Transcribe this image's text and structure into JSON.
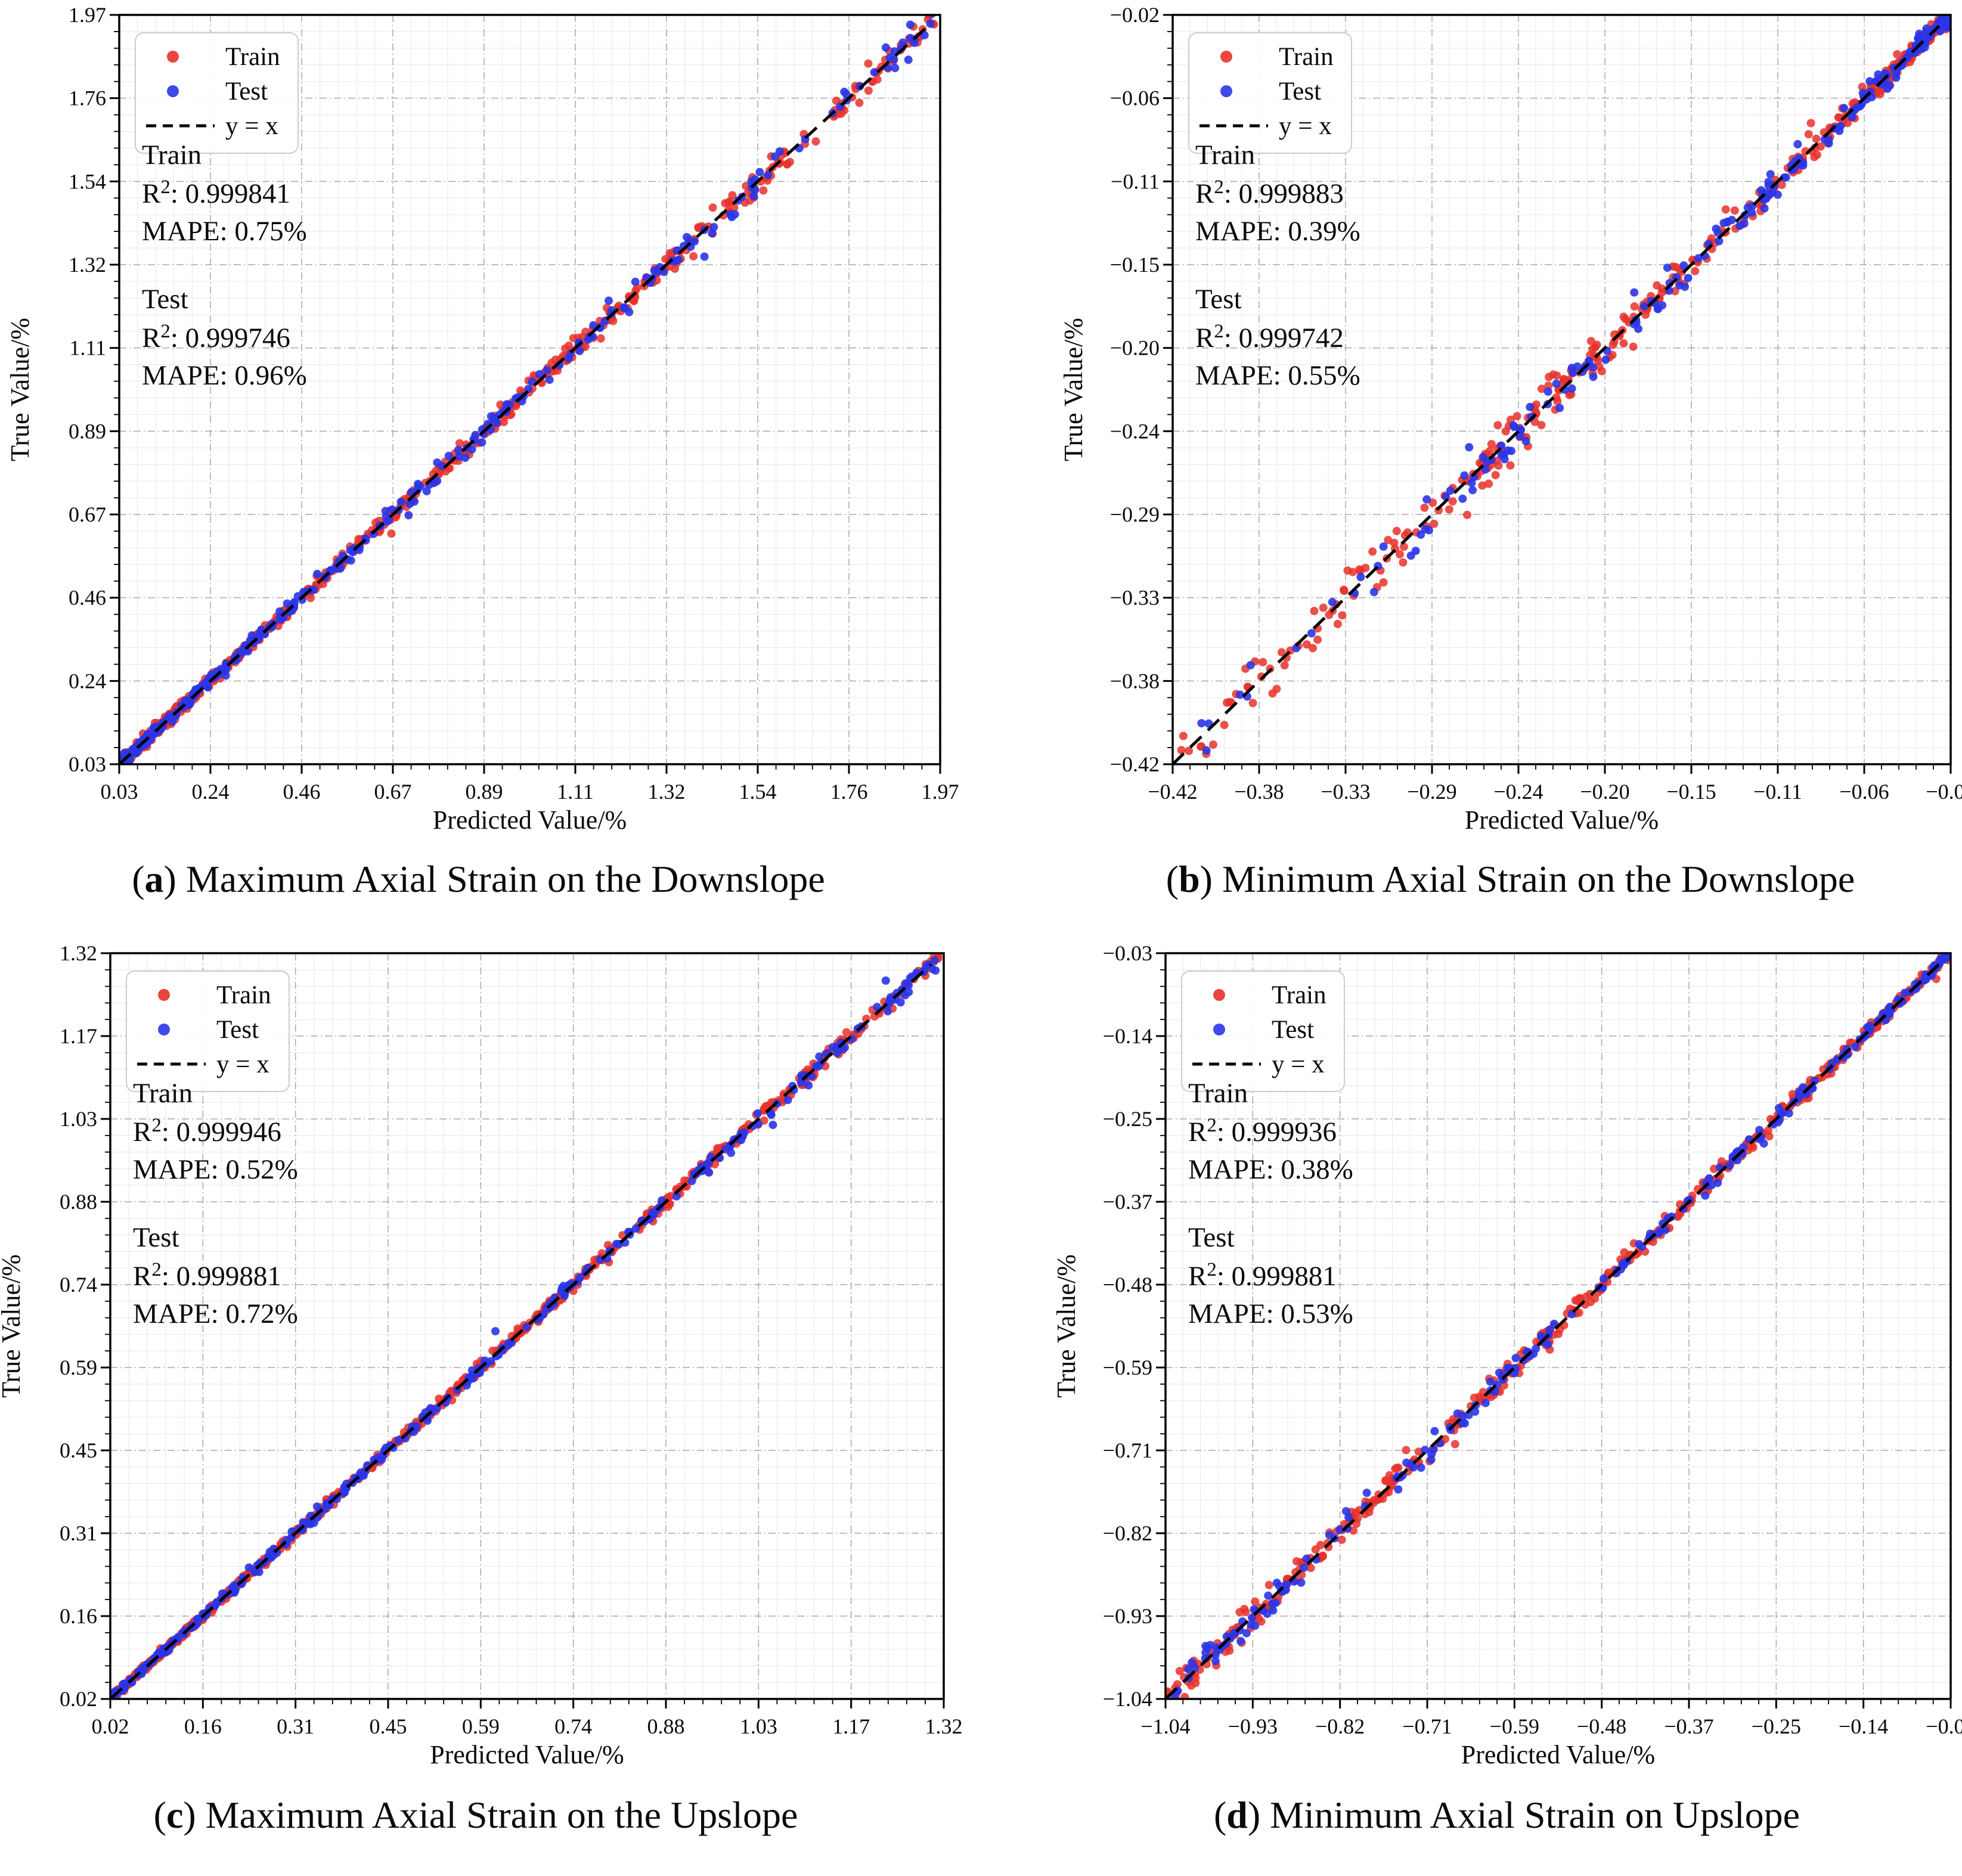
{
  "shared": {
    "legend": {
      "train_label": "Train",
      "test_label": "Test",
      "identity_label": "y = x"
    },
    "stats_labels": {
      "train": "Train",
      "test": "Test",
      "r2_base": "R",
      "r2_sup": "2",
      "colon": ": ",
      "mape": "MAPE: "
    },
    "colors": {
      "train": "#e8312a",
      "test": "#2a35e8",
      "identity": "#000000",
      "grid_major": "#9a9a9a",
      "grid_minor": "#e9e9e9",
      "spine": "#000000"
    }
  },
  "chart_data": [
    {
      "id": "a",
      "type": "scatter",
      "caption_letter": "a",
      "caption_paren_open": "(",
      "caption_paren_close": ") ",
      "caption_text": "Maximum Axial Strain on the Downslope",
      "xlabel": "Predicted Value/%",
      "ylabel": "True Value/%",
      "axis_min": 0.03,
      "axis_max": 1.97,
      "tick_labels": [
        "0.03",
        "0.24",
        "0.46",
        "0.67",
        "0.89",
        "1.11",
        "1.32",
        "1.54",
        "1.76",
        "1.97"
      ],
      "legend_entries": [
        "Train",
        "Test",
        "y = x"
      ],
      "grid": "major-dashed+minor",
      "identity_line": "y = x",
      "series": [
        {
          "name": "Train",
          "role": "train",
          "r2": "0.999841",
          "mape": "0.75%"
        },
        {
          "name": "Test",
          "role": "test",
          "r2": "0.999746",
          "mape": "0.96%"
        }
      ],
      "point_cloud": {
        "seed": 101,
        "n_train": 680,
        "n_test": 340,
        "bias": 2.2,
        "dense_end": "min",
        "noise_base": 0.006,
        "noise_prop": 0.0075
      }
    },
    {
      "id": "b",
      "type": "scatter",
      "caption_letter": "b",
      "caption_paren_open": "(",
      "caption_paren_close": ") ",
      "caption_text": "Minimum Axial Strain on the Downslope",
      "xlabel": "Predicted Value/%",
      "ylabel": "True Value/%",
      "axis_min": -0.42,
      "axis_max": -0.02,
      "tick_labels": [
        "−0.42",
        "−0.38",
        "−0.33",
        "−0.29",
        "−0.24",
        "−0.20",
        "−0.15",
        "−0.11",
        "−0.06",
        "−0.02"
      ],
      "legend_entries": [
        "Train",
        "Test",
        "y = x"
      ],
      "grid": "major-dashed+minor",
      "identity_line": "y = x",
      "series": [
        {
          "name": "Train",
          "role": "train",
          "r2": "0.999883",
          "mape": "0.39%"
        },
        {
          "name": "Test",
          "role": "test",
          "r2": "0.999742",
          "mape": "0.55%"
        }
      ],
      "point_cloud": {
        "seed": 202,
        "n_train": 430,
        "n_test": 215,
        "bias": 2.0,
        "dense_end": "max",
        "noise_base": 0.0022,
        "noise_prop": 0.016
      }
    },
    {
      "id": "c",
      "type": "scatter",
      "caption_letter": "c",
      "caption_paren_open": "(",
      "caption_paren_close": ") ",
      "caption_text": "Maximum Axial Strain on the Upslope",
      "xlabel": "Predicted Value/%",
      "ylabel": "True Value/%",
      "axis_min": 0.02,
      "axis_max": 1.32,
      "tick_labels": [
        "0.02",
        "0.16",
        "0.31",
        "0.45",
        "0.59",
        "0.74",
        "0.88",
        "1.03",
        "1.17",
        "1.32"
      ],
      "legend_entries": [
        "Train",
        "Test",
        "y = x"
      ],
      "grid": "major-dashed+minor",
      "identity_line": "y = x",
      "series": [
        {
          "name": "Train",
          "role": "train",
          "r2": "0.999946",
          "mape": "0.52%"
        },
        {
          "name": "Test",
          "role": "test",
          "r2": "0.999881",
          "mape": "0.72%"
        }
      ],
      "point_cloud": {
        "seed": 303,
        "n_train": 680,
        "n_test": 340,
        "bias": 1.6,
        "dense_end": "min",
        "noise_base": 0.0028,
        "noise_prop": 0.004
      }
    },
    {
      "id": "d",
      "type": "scatter",
      "caption_letter": "d",
      "caption_paren_open": "(",
      "caption_paren_close": ") ",
      "caption_text": "Minimum Axial Strain on Upslope",
      "xlabel": "Predicted Value/%",
      "ylabel": "True Value/%",
      "axis_min": -1.04,
      "axis_max": -0.03,
      "tick_labels": [
        "−1.04",
        "−0.93",
        "−0.82",
        "−0.71",
        "−0.59",
        "−0.48",
        "−0.37",
        "−0.25",
        "−0.14",
        "−0.03"
      ],
      "legend_entries": [
        "Train",
        "Test",
        "y = x"
      ],
      "grid": "major-dashed+minor",
      "identity_line": "y = x",
      "series": [
        {
          "name": "Train",
          "role": "train",
          "r2": "0.999936",
          "mape": "0.38%"
        },
        {
          "name": "Test",
          "role": "test",
          "r2": "0.999881",
          "mape": "0.53%"
        }
      ],
      "point_cloud": {
        "seed": 404,
        "n_train": 470,
        "n_test": 235,
        "bias": 1.35,
        "dense_end": "max",
        "noise_base": 0.003,
        "noise_prop": 0.008
      }
    }
  ]
}
